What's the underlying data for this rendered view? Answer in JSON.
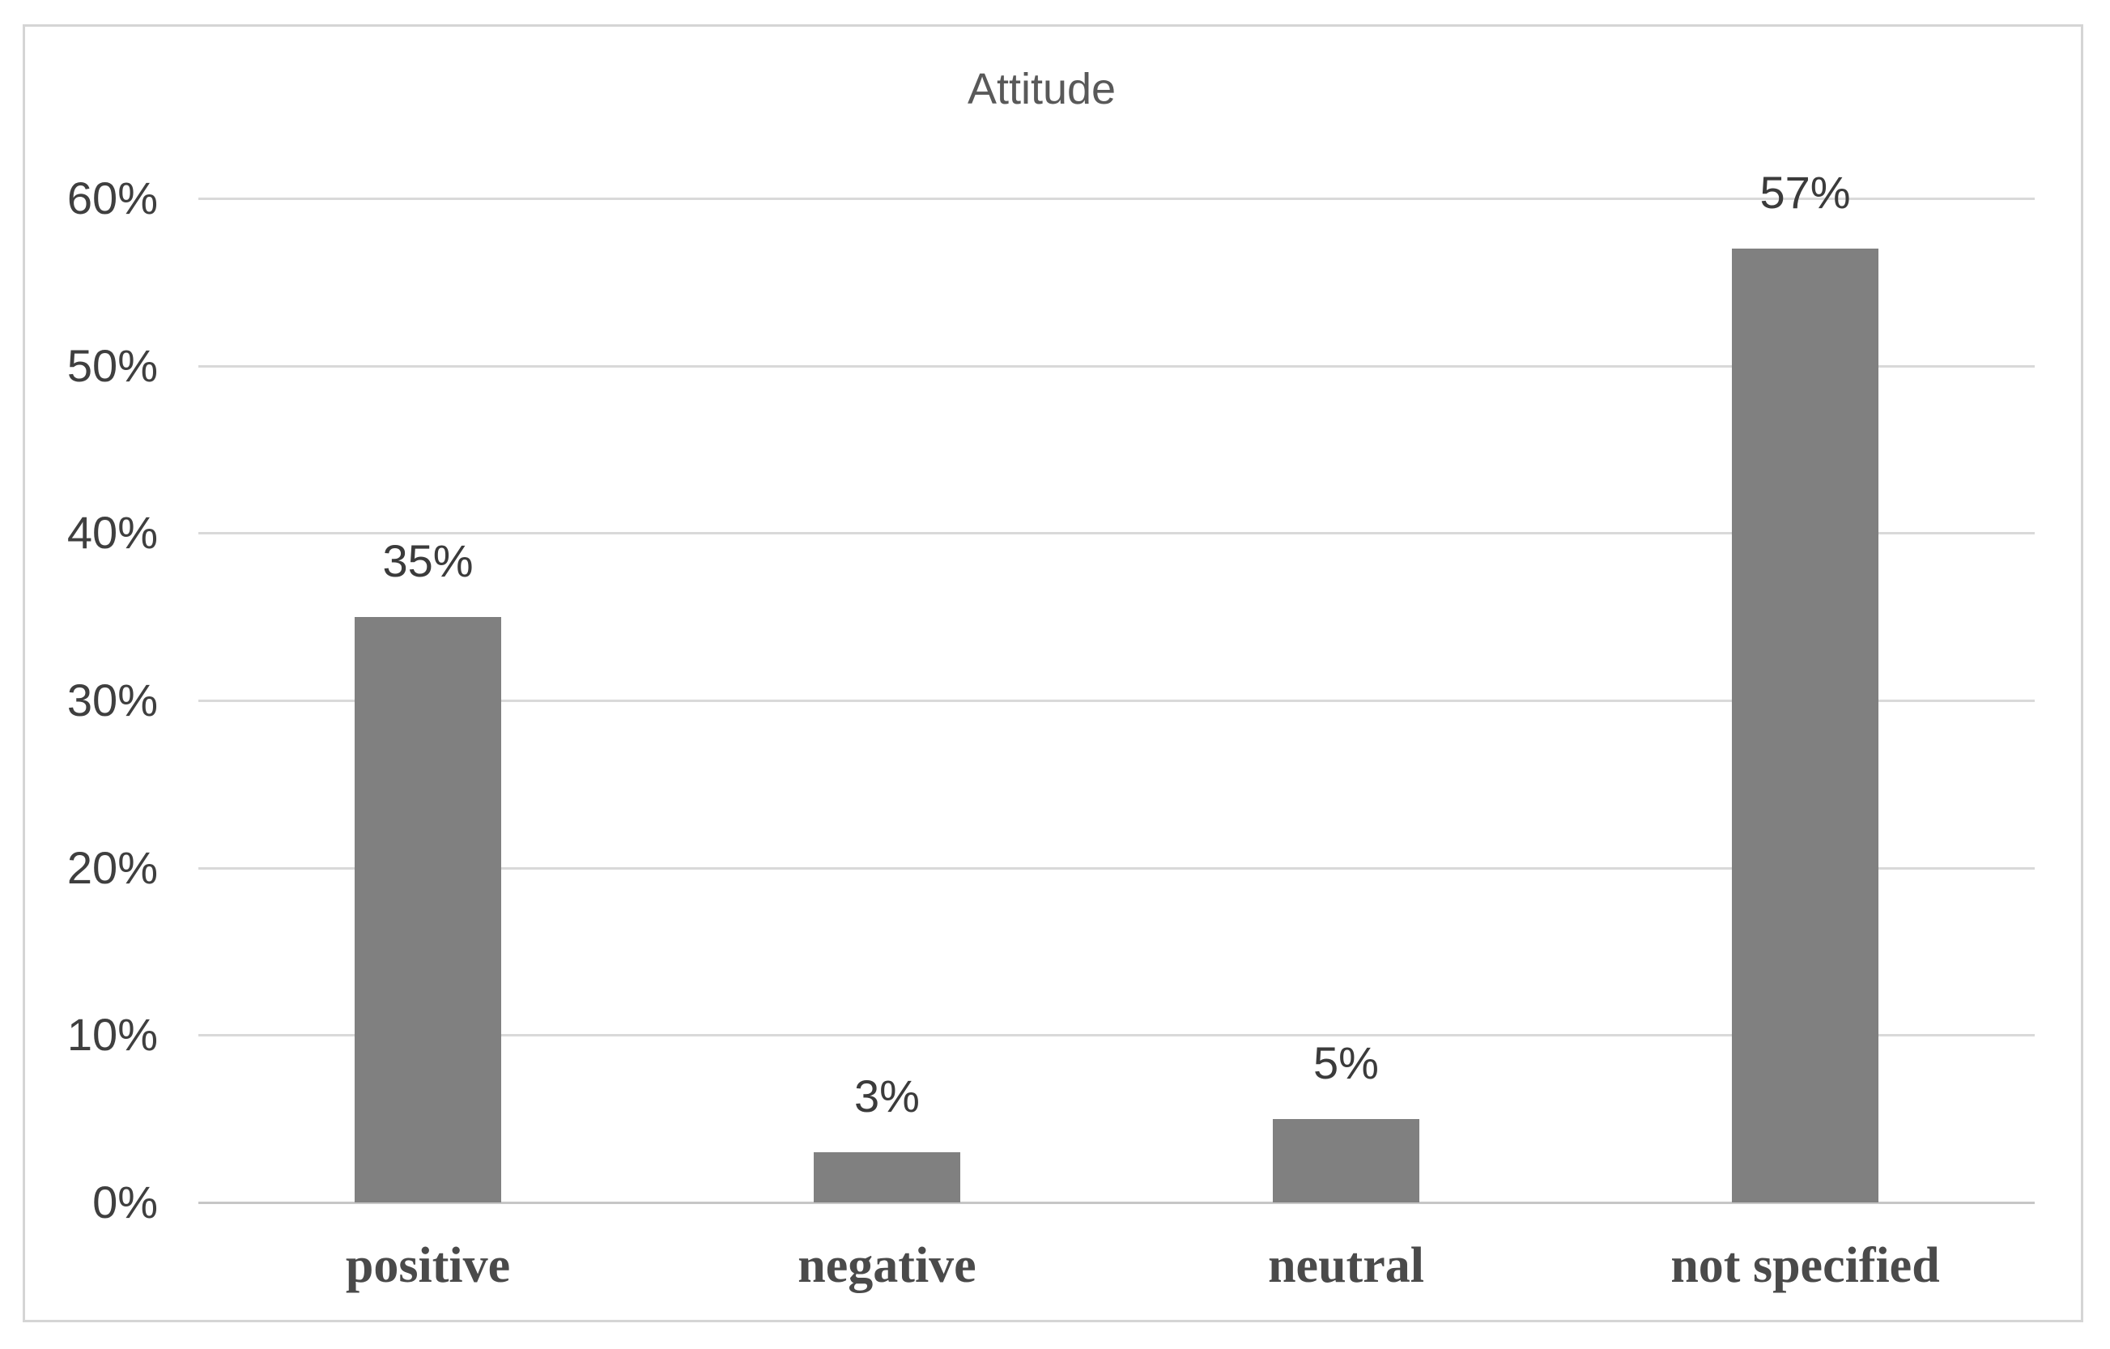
{
  "chart_data": {
    "type": "bar",
    "title": "Attitude",
    "categories": [
      "positive",
      "negative",
      "neutral",
      "not specified"
    ],
    "values": [
      35,
      3,
      5,
      57
    ],
    "value_labels": [
      "35%",
      "3%",
      "5%",
      "57%"
    ],
    "series_name": "",
    "xlabel": "",
    "ylabel": "",
    "ylim": [
      0,
      60
    ],
    "yticks": [
      0,
      10,
      20,
      30,
      40,
      50,
      60
    ],
    "ytick_labels": [
      "0%",
      "10%",
      "20%",
      "30%",
      "40%",
      "50%",
      "60%"
    ],
    "grid": "horizontal gridlines on",
    "legend": "none",
    "colors": {
      "bar_fill": "#808080",
      "gridline": "#d9d9d9",
      "axis_line": "#c6c6c6",
      "frame_border": "#d5d5d5",
      "title_text": "#595959",
      "tick_text": "#3f3f3f",
      "value_label_text": "#3b3b3b",
      "category_text": "#4a4a4a",
      "background": "#ffffff"
    }
  }
}
